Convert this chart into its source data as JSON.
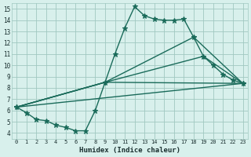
{
  "title": "",
  "xlabel": "Humidex (Indice chaleur)",
  "ylabel": "",
  "background_color": "#d8f0ec",
  "grid_color": "#a0c8c0",
  "line_color": "#1a6b5a",
  "xlim": [
    -0.5,
    23.5
  ],
  "ylim": [
    3.5,
    15.5
  ],
  "xticks": [
    0,
    1,
    2,
    3,
    4,
    5,
    6,
    7,
    8,
    9,
    10,
    11,
    12,
    13,
    14,
    15,
    16,
    17,
    18,
    19,
    20,
    21,
    22,
    23
  ],
  "yticks": [
    4,
    5,
    6,
    7,
    8,
    9,
    10,
    11,
    12,
    13,
    14,
    15
  ],
  "series": [
    {
      "name": "main_zigzag",
      "x": [
        0,
        1,
        2,
        3,
        4,
        5,
        6,
        7,
        8,
        9,
        10,
        11,
        12,
        13,
        14,
        15,
        16,
        17,
        18,
        19,
        20,
        21,
        22,
        23
      ],
      "y": [
        6.3,
        5.8,
        5.2,
        5.1,
        4.7,
        4.5,
        4.2,
        4.2,
        6.0,
        8.5,
        11.0,
        13.3,
        15.2,
        14.4,
        14.1,
        14.0,
        14.0,
        14.1,
        12.5,
        10.8,
        10.0,
        9.2,
        8.7,
        8.4
      ],
      "marker": "*",
      "markersize": 4.5,
      "linewidth": 1.0
    },
    {
      "name": "line_low",
      "x": [
        0,
        23
      ],
      "y": [
        6.3,
        8.4
      ],
      "marker": "+",
      "markersize": 5,
      "linewidth": 1.0
    },
    {
      "name": "line_mid1",
      "x": [
        0,
        9,
        23
      ],
      "y": [
        6.3,
        8.5,
        8.4
      ],
      "marker": "+",
      "markersize": 5,
      "linewidth": 1.0
    },
    {
      "name": "line_mid2",
      "x": [
        0,
        9,
        19,
        23
      ],
      "y": [
        6.3,
        8.5,
        10.8,
        8.4
      ],
      "marker": "+",
      "markersize": 5,
      "linewidth": 1.0
    },
    {
      "name": "line_high",
      "x": [
        0,
        9,
        18,
        23
      ],
      "y": [
        6.3,
        8.5,
        12.5,
        8.4
      ],
      "marker": "+",
      "markersize": 5,
      "linewidth": 1.0
    }
  ]
}
